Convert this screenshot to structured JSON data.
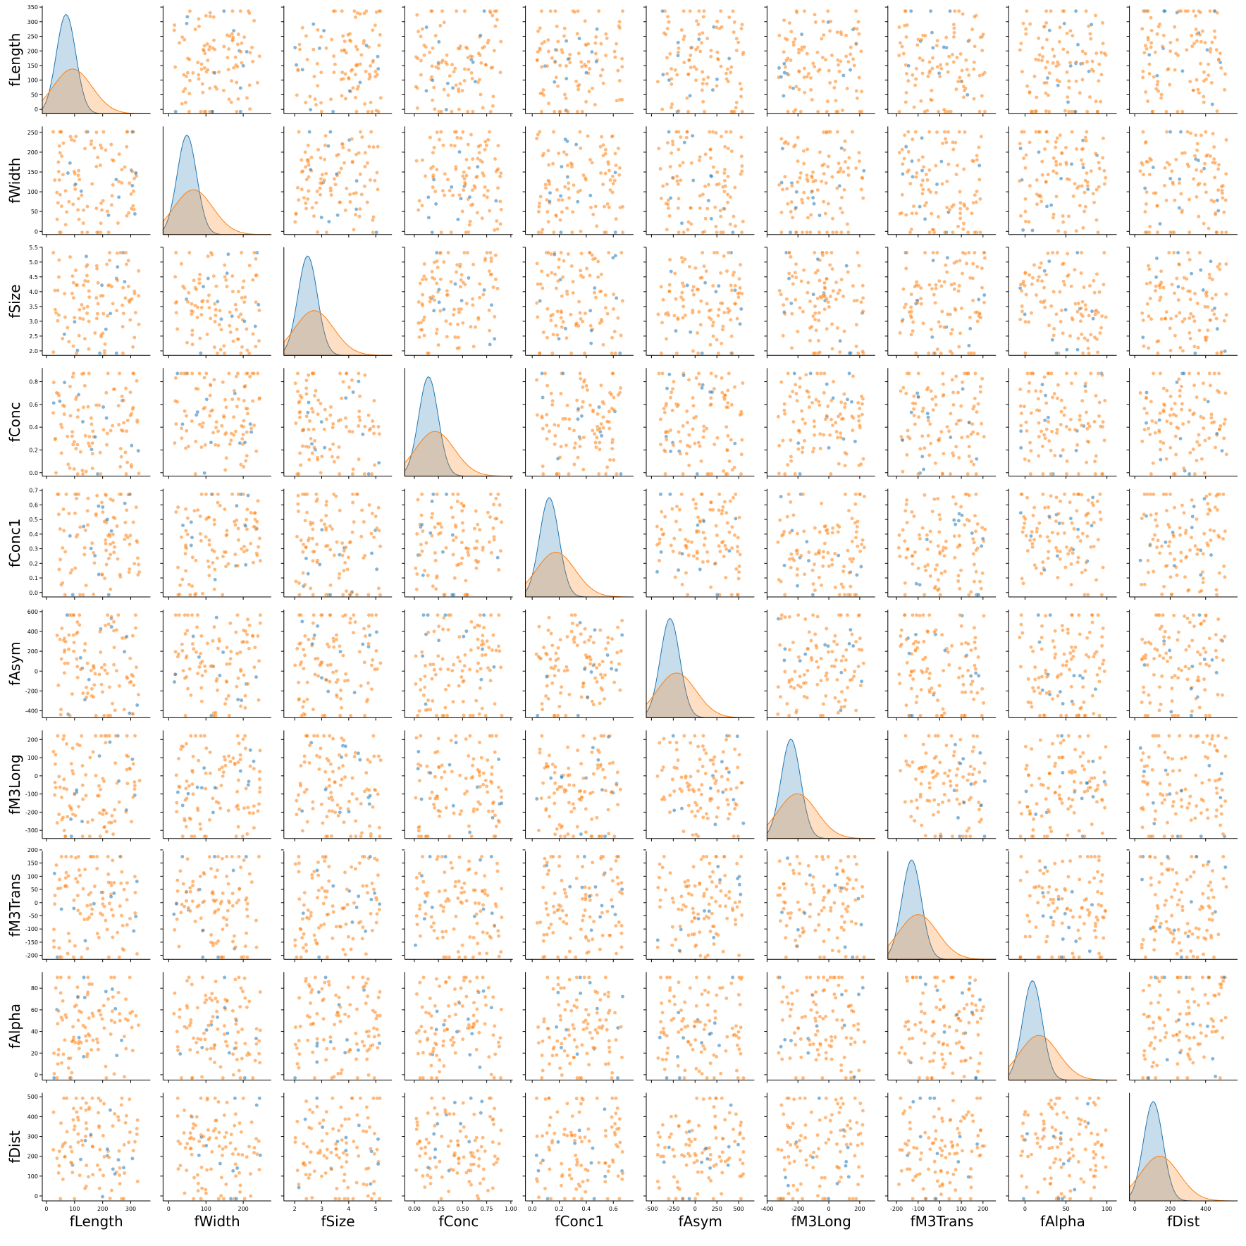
{
  "chart_data": {
    "type": "pairplot",
    "title": "",
    "variables": [
      "fLength",
      "fWidth",
      "fSize",
      "fConc",
      "fConc1",
      "fAsym",
      "fM3Long",
      "fM3Trans",
      "fAlpha",
      "fDist"
    ],
    "hue_colors": [
      "#1f77b4",
      "#ff7f0e"
    ],
    "legend": "none",
    "grid": false,
    "diagonal": "kde",
    "off_diagonal": "scatter",
    "axes": [
      {
        "name": "fLength",
        "range": [
          -15,
          370
        ],
        "ticks": [
          0,
          100,
          200,
          300
        ],
        "ytick_labels": [
          "0",
          "50",
          "100",
          "150",
          "200",
          "250",
          "300",
          "350"
        ],
        "yticks": [
          0,
          50,
          100,
          150,
          200,
          250,
          300,
          350
        ],
        "yrange": [
          -15,
          355
        ]
      },
      {
        "name": "fWidth",
        "range": [
          -15,
          275
        ],
        "ticks": [
          0,
          100,
          200
        ],
        "yticks": [
          0,
          50,
          100,
          150,
          200,
          250
        ],
        "yrange": [
          -8,
          265
        ]
      },
      {
        "name": "fSize",
        "range": [
          1.6,
          5.6
        ],
        "ticks": [
          2,
          3,
          4,
          5
        ],
        "yticks": [
          2.0,
          2.5,
          3.0,
          3.5,
          4.0,
          4.5,
          5.0,
          5.5
        ],
        "yrange": [
          1.85,
          5.5
        ]
      },
      {
        "name": "fConc",
        "range": [
          -0.1,
          1.02
        ],
        "ticks": [
          0.0,
          0.25,
          0.5,
          0.75,
          1.0
        ],
        "yticks": [
          0.0,
          0.2,
          0.4,
          0.6,
          0.8
        ],
        "yrange": [
          -0.03,
          0.92
        ]
      },
      {
        "name": "fConc1",
        "range": [
          -0.05,
          0.75
        ],
        "ticks": [
          0.0,
          0.2,
          0.4,
          0.6
        ],
        "yticks": [
          0.0,
          0.1,
          0.2,
          0.3,
          0.4,
          0.5,
          0.6,
          0.7
        ],
        "yrange": [
          -0.03,
          0.71
        ]
      },
      {
        "name": "fAsym",
        "range": [
          -560,
          680
        ],
        "ticks": [
          -500,
          -250,
          0,
          250,
          500
        ],
        "yticks": [
          -400,
          -200,
          0,
          200,
          400,
          600
        ],
        "yrange": [
          -470,
          620
        ]
      },
      {
        "name": "fM3Long",
        "range": [
          -400,
          300
        ],
        "ticks": [
          -400,
          -200,
          0,
          200
        ],
        "yticks": [
          -300,
          -200,
          -100,
          0,
          100,
          200
        ],
        "yrange": [
          -345,
          250
        ]
      },
      {
        "name": "fM3Trans",
        "range": [
          -240,
          260
        ],
        "ticks": [
          -200,
          -100,
          0,
          100,
          200
        ],
        "yticks": [
          -200,
          -150,
          -100,
          -50,
          0,
          50,
          100,
          150,
          200
        ],
        "yrange": [
          -215,
          195
        ]
      },
      {
        "name": "fAlpha",
        "range": [
          -20,
          112
        ],
        "ticks": [
          0,
          50,
          100
        ],
        "yticks": [
          0,
          20,
          40,
          60,
          80
        ],
        "yrange": [
          -5,
          95
        ]
      },
      {
        "name": "fDist",
        "range": [
          -30,
          580
        ],
        "ticks": [
          0,
          200,
          400
        ],
        "yticks": [
          0,
          100,
          200,
          300,
          400,
          500
        ],
        "yrange": [
          -25,
          520
        ]
      }
    ]
  }
}
